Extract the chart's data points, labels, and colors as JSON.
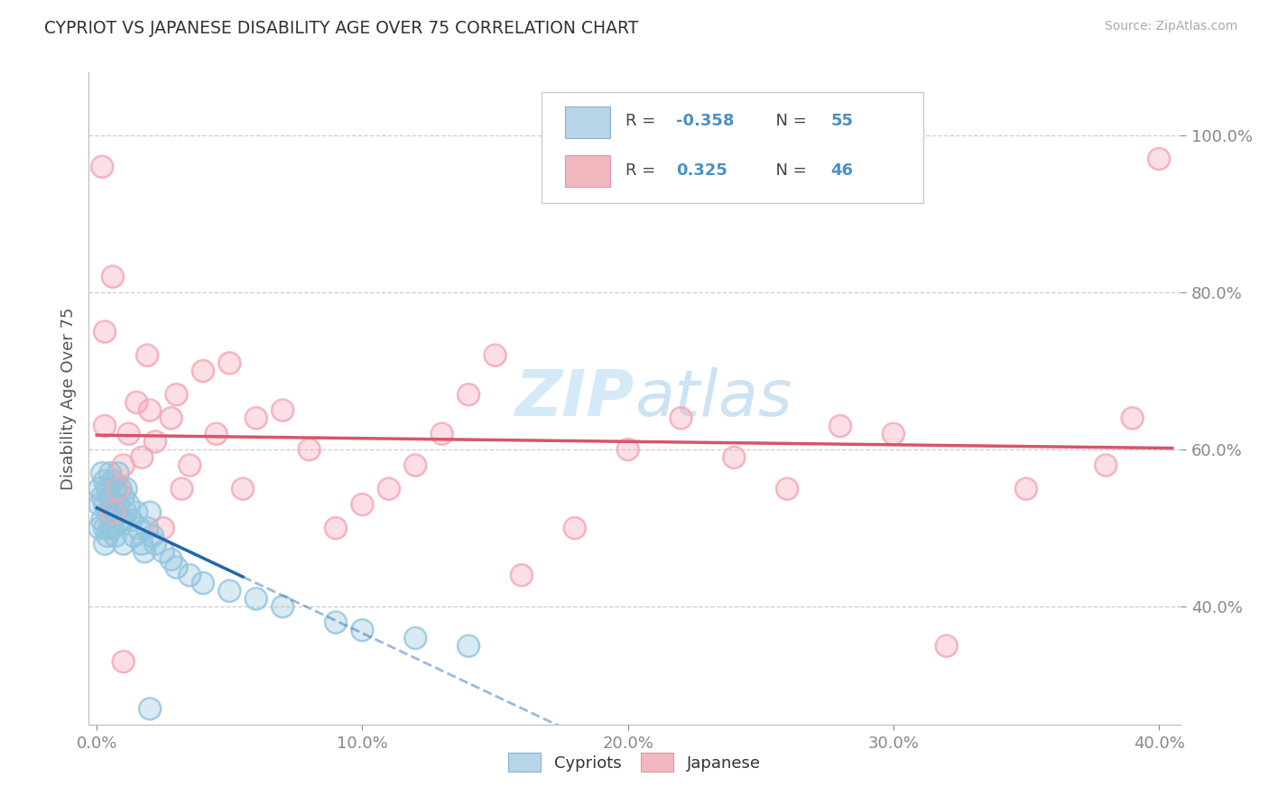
{
  "title": "CYPRIOT VS JAPANESE DISABILITY AGE OVER 75 CORRELATION CHART",
  "source": "Source: ZipAtlas.com",
  "ylabel": "Disability Age Over 75",
  "xlim": [
    -0.003,
    0.408
  ],
  "ylim": [
    0.25,
    1.08
  ],
  "xticks": [
    0.0,
    0.1,
    0.2,
    0.3,
    0.4
  ],
  "yticks": [
    0.4,
    0.6,
    0.8,
    1.0
  ],
  "ytick_labels": [
    "40.0%",
    "60.0%",
    "80.0%",
    "100.0%"
  ],
  "xtick_labels": [
    "0.0%",
    "10.0%",
    "20.0%",
    "30.0%",
    "40.0%"
  ],
  "r_blue": -0.358,
  "n_blue": 55,
  "r_pink": 0.325,
  "n_pink": 46,
  "blue_color": "#92c5de",
  "pink_color": "#f4a6b2",
  "blue_line_color": "#2166ac",
  "pink_line_color": "#d6556a",
  "watermark_color": "#d0e8f5",
  "legend_labels": [
    "Cypriots",
    "Japanese"
  ],
  "blue_x": [
    0.001,
    0.001,
    0.001,
    0.002,
    0.002,
    0.002,
    0.003,
    0.003,
    0.003,
    0.003,
    0.004,
    0.004,
    0.004,
    0.005,
    0.005,
    0.005,
    0.006,
    0.006,
    0.006,
    0.007,
    0.007,
    0.007,
    0.008,
    0.008,
    0.009,
    0.009,
    0.01,
    0.01,
    0.01,
    0.011,
    0.011,
    0.012,
    0.013,
    0.014,
    0.015,
    0.016,
    0.017,
    0.018,
    0.019,
    0.02,
    0.021,
    0.022,
    0.025,
    0.028,
    0.03,
    0.035,
    0.04,
    0.05,
    0.06,
    0.07,
    0.09,
    0.1,
    0.12,
    0.14,
    0.02
  ],
  "blue_y": [
    0.55,
    0.53,
    0.5,
    0.57,
    0.54,
    0.51,
    0.56,
    0.53,
    0.5,
    0.48,
    0.55,
    0.52,
    0.49,
    0.57,
    0.54,
    0.5,
    0.56,
    0.53,
    0.5,
    0.55,
    0.52,
    0.49,
    0.57,
    0.53,
    0.55,
    0.51,
    0.54,
    0.51,
    0.48,
    0.55,
    0.52,
    0.53,
    0.51,
    0.49,
    0.52,
    0.5,
    0.48,
    0.47,
    0.5,
    0.52,
    0.49,
    0.48,
    0.47,
    0.46,
    0.45,
    0.44,
    0.43,
    0.42,
    0.41,
    0.4,
    0.38,
    0.37,
    0.36,
    0.35,
    0.27
  ],
  "pink_x": [
    0.002,
    0.003,
    0.006,
    0.008,
    0.01,
    0.012,
    0.015,
    0.017,
    0.019,
    0.02,
    0.022,
    0.025,
    0.028,
    0.03,
    0.032,
    0.035,
    0.04,
    0.045,
    0.05,
    0.055,
    0.06,
    0.07,
    0.08,
    0.09,
    0.1,
    0.11,
    0.12,
    0.13,
    0.14,
    0.15,
    0.16,
    0.18,
    0.2,
    0.22,
    0.24,
    0.26,
    0.28,
    0.3,
    0.32,
    0.35,
    0.38,
    0.39,
    0.4,
    0.003,
    0.006,
    0.01
  ],
  "pink_y": [
    0.96,
    0.75,
    0.82,
    0.55,
    0.58,
    0.62,
    0.66,
    0.59,
    0.72,
    0.65,
    0.61,
    0.5,
    0.64,
    0.67,
    0.55,
    0.58,
    0.7,
    0.62,
    0.71,
    0.55,
    0.64,
    0.65,
    0.6,
    0.5,
    0.53,
    0.55,
    0.58,
    0.62,
    0.67,
    0.72,
    0.44,
    0.5,
    0.6,
    0.64,
    0.59,
    0.55,
    0.63,
    0.62,
    0.35,
    0.55,
    0.58,
    0.64,
    0.97,
    0.63,
    0.52,
    0.33
  ]
}
